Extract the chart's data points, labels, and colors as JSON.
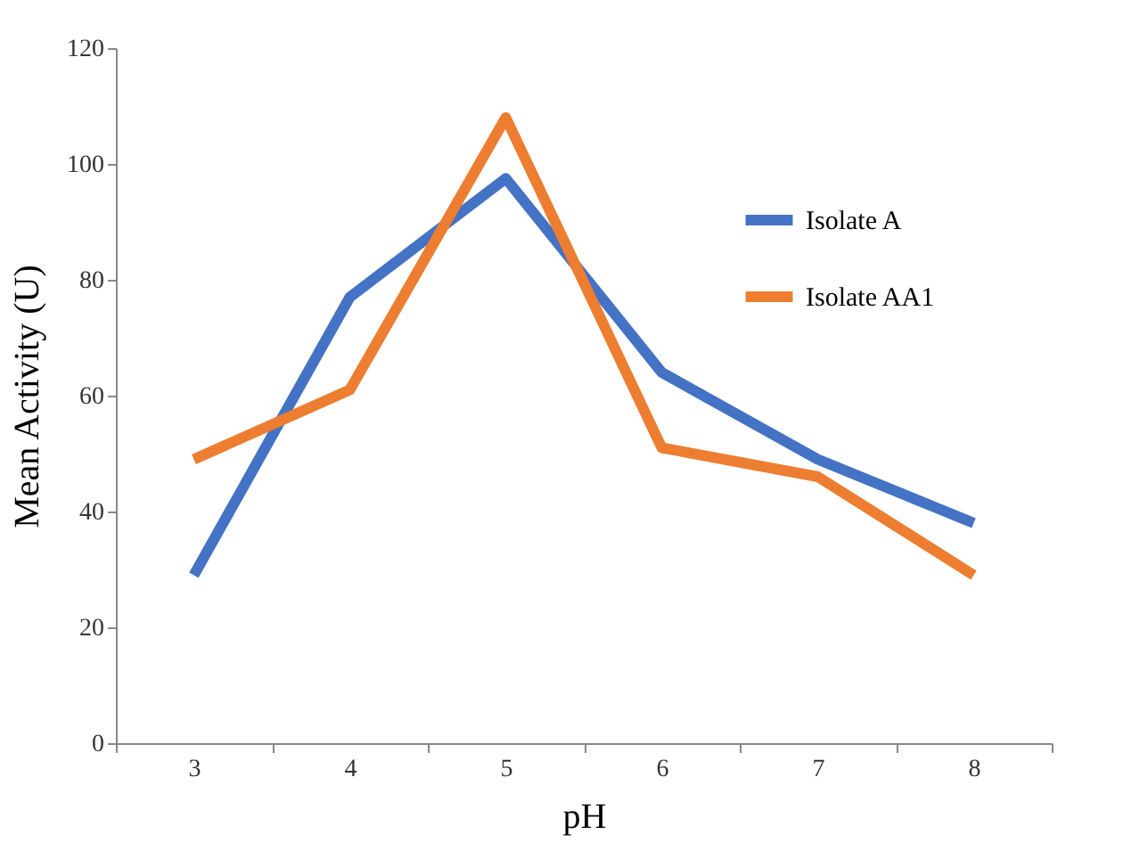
{
  "chart_data": {
    "type": "line",
    "xlabel": "pH",
    "ylabel": "Mean Activity (U)",
    "categories": [
      "3",
      "4",
      "5",
      "6",
      "7",
      "8"
    ],
    "series": [
      {
        "name": "Isolate A",
        "color": "#4472c4",
        "values": [
          29,
          77,
          97.5,
          64,
          49,
          38
        ]
      },
      {
        "name": "Isolate AA1",
        "color": "#ed7d31",
        "values": [
          49,
          61,
          108,
          51,
          46,
          29
        ]
      }
    ],
    "ylim": [
      0,
      120
    ],
    "yticks": [
      0,
      20,
      40,
      60,
      80,
      100,
      120
    ],
    "grid": false,
    "legend": "top right",
    "marker": "none",
    "line_style": "solid"
  }
}
